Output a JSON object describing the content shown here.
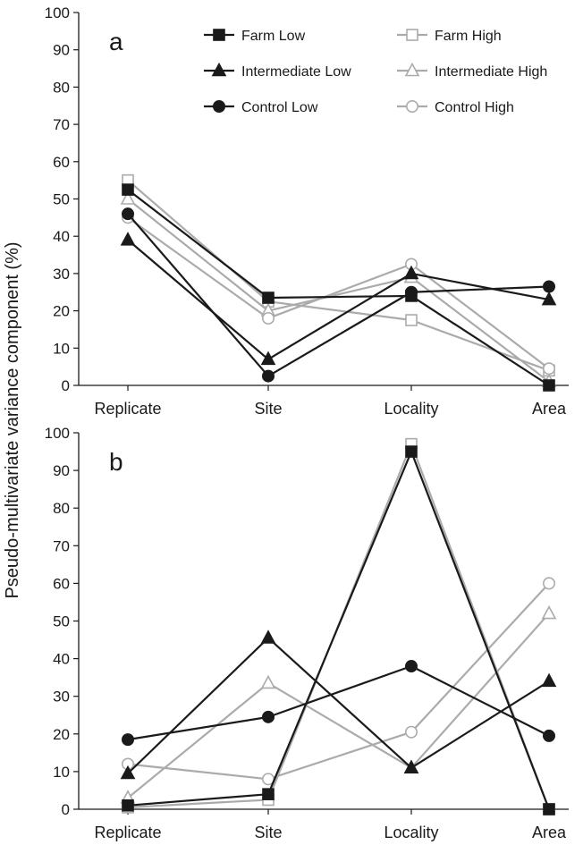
{
  "chart_data": {
    "type": "line",
    "ylabel": "Pseudo-multivariate variance component (%)",
    "categories": [
      "Replicate",
      "Site",
      "Locality",
      "Area"
    ],
    "ylim": [
      0,
      100
    ],
    "yticks": [
      "0",
      "10",
      "20",
      "30",
      "40",
      "50",
      "60",
      "70",
      "80",
      "90",
      "100"
    ],
    "legend": {
      "placement": "top-right",
      "entries": [
        {
          "name": "Farm Low",
          "color": "#1a1a1a",
          "marker": "square",
          "filled": true
        },
        {
          "name": "Farm High",
          "color": "#ababab",
          "marker": "square",
          "filled": false
        },
        {
          "name": "Intermediate Low",
          "color": "#1a1a1a",
          "marker": "triangle",
          "filled": true
        },
        {
          "name": "Intermediate High",
          "color": "#ababab",
          "marker": "triangle",
          "filled": false
        },
        {
          "name": "Control Low",
          "color": "#1a1a1a",
          "marker": "circle",
          "filled": true
        },
        {
          "name": "Control High",
          "color": "#ababab",
          "marker": "circle",
          "filled": false
        }
      ]
    },
    "panels": [
      {
        "label": "a",
        "series": [
          {
            "name": "Farm Low",
            "values": [
              52.5,
              23.5,
              24,
              0
            ]
          },
          {
            "name": "Farm High",
            "values": [
              55,
              22.5,
              17.5,
              4
            ]
          },
          {
            "name": "Intermediate Low",
            "values": [
              39,
              7,
              30,
              23
            ]
          },
          {
            "name": "Intermediate High",
            "values": [
              50,
              20,
              29,
              1
            ]
          },
          {
            "name": "Control Low",
            "values": [
              46,
              2.5,
              25,
              26.5
            ]
          },
          {
            "name": "Control High",
            "values": [
              45,
              18,
              32.5,
              4.5
            ]
          }
        ]
      },
      {
        "label": "b",
        "series": [
          {
            "name": "Farm Low",
            "values": [
              1,
              4,
              95,
              0
            ]
          },
          {
            "name": "Farm High",
            "values": [
              0.5,
              2.5,
              97,
              0
            ]
          },
          {
            "name": "Intermediate Low",
            "values": [
              9.5,
              45.5,
              11,
              34
            ]
          },
          {
            "name": "Intermediate High",
            "values": [
              3,
              33.5,
              11,
              52
            ]
          },
          {
            "name": "Control Low",
            "values": [
              18.5,
              24.5,
              38,
              19.5
            ]
          },
          {
            "name": "Control High",
            "values": [
              12,
              8,
              20.5,
              60
            ]
          }
        ]
      }
    ]
  }
}
